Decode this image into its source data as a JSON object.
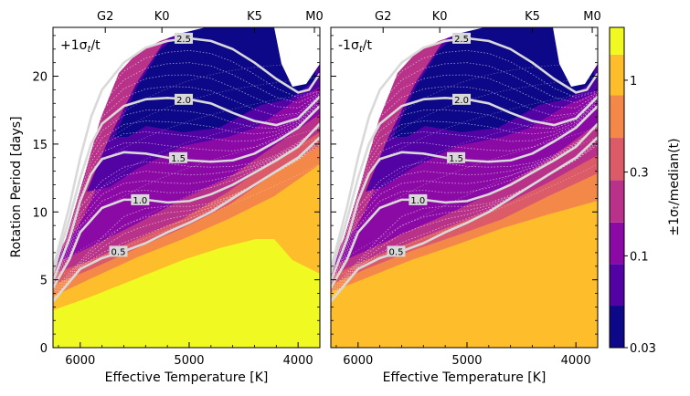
{
  "chart_data": {
    "type": "heatmap",
    "xlabel": "Effective Temperature [K]",
    "ylabel": "Rotation Period [days]",
    "xlim": [
      6250,
      3800
    ],
    "ylim": [
      0,
      23.6
    ],
    "x_ticks": [
      6000,
      5000,
      4000
    ],
    "y_ticks": [
      0,
      5,
      10,
      15,
      20
    ],
    "spectral_axis": {
      "labels": [
        "G2",
        "K0",
        "K5",
        "M0"
      ],
      "teff": [
        5770,
        5250,
        4400,
        3850
      ]
    },
    "panels": [
      {
        "label": "+1σₜ/t",
        "label_main": "+1σ",
        "label_sub": "t",
        "label_tail": "/t"
      },
      {
        "label": "-1σₜ/t",
        "label_main": "-1σ",
        "label_sub": "t",
        "label_tail": "/t"
      }
    ],
    "colorbar": {
      "label": "±1σₜ/median(t)",
      "scale": "log",
      "ticks": [
        "0.03",
        "0.1",
        "0.3",
        "1"
      ],
      "tick_values": [
        0.03,
        0.1,
        0.3,
        1
      ],
      "range": [
        0.03,
        2.0
      ],
      "band_colors": [
        "#0d0887",
        "#5302a3",
        "#8b0aa5",
        "#b83289",
        "#db5c68",
        "#f48849",
        "#febd2a",
        "#f0f921"
      ]
    },
    "isochrones_gyr": [
      {
        "age": "0.5",
        "period_at_teff": [
          [
            6250,
            3.4
          ],
          [
            6000,
            5.8
          ],
          [
            5800,
            6.6
          ],
          [
            5600,
            7.1
          ],
          [
            5400,
            7.7
          ],
          [
            5200,
            8.5
          ],
          [
            5000,
            9.2
          ],
          [
            4800,
            10.0
          ],
          [
            4600,
            11.0
          ],
          [
            4400,
            12.0
          ],
          [
            4200,
            13.0
          ],
          [
            4000,
            14.0
          ],
          [
            3800,
            15.5
          ]
        ]
      },
      {
        "age": "1.0",
        "period_at_teff": [
          [
            6250,
            4.4
          ],
          [
            6100,
            6.5
          ],
          [
            6000,
            8.5
          ],
          [
            5800,
            10.3
          ],
          [
            5600,
            10.9
          ],
          [
            5400,
            10.9
          ],
          [
            5200,
            10.7
          ],
          [
            5000,
            10.8
          ],
          [
            4800,
            11.3
          ],
          [
            4600,
            12.0
          ],
          [
            4400,
            12.9
          ],
          [
            4200,
            13.8
          ],
          [
            4000,
            14.8
          ],
          [
            3800,
            16.5
          ]
        ]
      },
      {
        "age": "1.5",
        "period_at_teff": [
          [
            6250,
            4.9
          ],
          [
            6100,
            8.0
          ],
          [
            6000,
            10.8
          ],
          [
            5900,
            12.8
          ],
          [
            5800,
            13.9
          ],
          [
            5600,
            14.4
          ],
          [
            5400,
            14.3
          ],
          [
            5200,
            14.0
          ],
          [
            5000,
            13.8
          ],
          [
            4800,
            13.7
          ],
          [
            4600,
            13.8
          ],
          [
            4400,
            14.3
          ],
          [
            4200,
            15.2
          ],
          [
            4000,
            16.2
          ],
          [
            3800,
            17.8
          ]
        ]
      },
      {
        "age": "2.0",
        "period_at_teff": [
          [
            6250,
            5.5
          ],
          [
            6100,
            9.5
          ],
          [
            6000,
            12.5
          ],
          [
            5900,
            15.0
          ],
          [
            5800,
            16.5
          ],
          [
            5600,
            17.8
          ],
          [
            5400,
            18.3
          ],
          [
            5200,
            18.4
          ],
          [
            5000,
            18.3
          ],
          [
            4800,
            18.0
          ],
          [
            4600,
            17.3
          ],
          [
            4400,
            16.7
          ],
          [
            4200,
            16.4
          ],
          [
            4000,
            16.9
          ],
          [
            3800,
            18.5
          ]
        ]
      },
      {
        "age": "2.5",
        "period_at_teff": [
          [
            6250,
            5.8
          ],
          [
            6100,
            10.4
          ],
          [
            6000,
            14.0
          ],
          [
            5900,
            17.0
          ],
          [
            5800,
            19.0
          ],
          [
            5600,
            21.0
          ],
          [
            5400,
            22.1
          ],
          [
            5200,
            22.6
          ],
          [
            5000,
            22.8
          ],
          [
            4800,
            22.6
          ],
          [
            4600,
            22.0
          ],
          [
            4400,
            21.0
          ],
          [
            4200,
            19.8
          ],
          [
            4000,
            18.8
          ],
          [
            3900,
            19.0
          ],
          [
            3800,
            20.2
          ]
        ]
      }
    ]
  }
}
